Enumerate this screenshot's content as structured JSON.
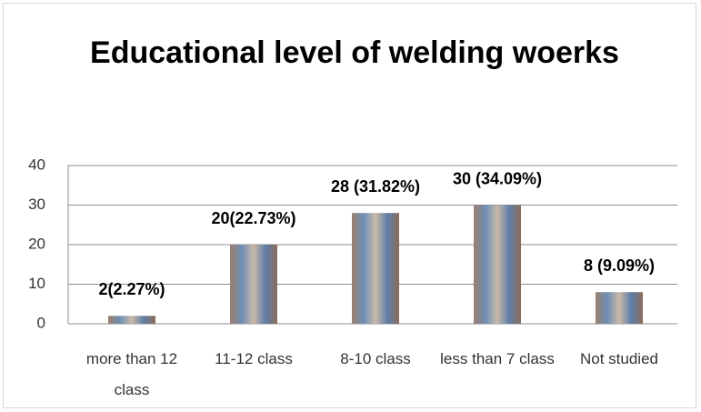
{
  "chart_data": {
    "type": "bar",
    "title": "Educational level of welding woerks",
    "categories": [
      "more than 12 class",
      "11-12 class",
      "8-10 class",
      "less than 7 class",
      "Not studied"
    ],
    "values": [
      2,
      20,
      28,
      30,
      8
    ],
    "value_labels": [
      "2(2.27%)",
      "20(22.73%)",
      "28 (31.82%)",
      "30 (34.09%)",
      "8 (9.09%)"
    ],
    "ylim": [
      0,
      40
    ],
    "yticks": [
      0,
      10,
      20,
      30,
      40
    ],
    "grid": true
  }
}
